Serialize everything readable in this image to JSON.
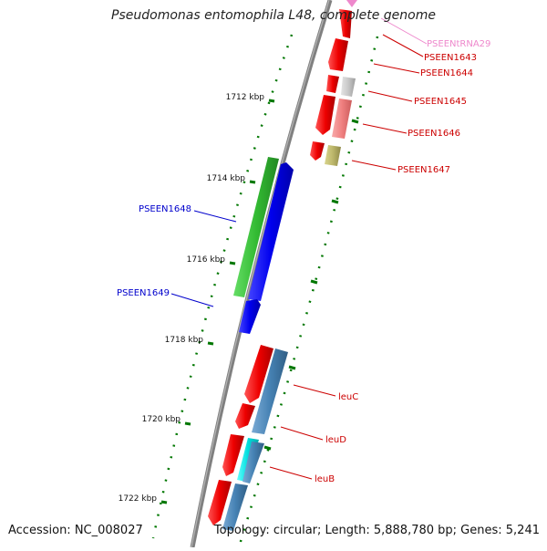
{
  "title": "Pseudomonas entomophila L48, complete genome",
  "footer": {
    "accession": "Accession: NC_008027",
    "topology": "Topology: circular; Length: 5,888,780 bp; Genes: 5,241"
  },
  "kbp_labels": [
    "1712 kbp",
    "1714 kbp",
    "1716 kbp",
    "1718 kbp",
    "1720 kbp",
    "1722 kbp"
  ],
  "gene_labels": [
    {
      "text": "PSEENtRNA29",
      "color": "#ee88cc"
    },
    {
      "text": "PSEEN1643",
      "color": "#cc0000"
    },
    {
      "text": "PSEEN1644",
      "color": "#cc0000"
    },
    {
      "text": "PSEEN1645",
      "color": "#cc0000"
    },
    {
      "text": "PSEEN1646",
      "color": "#cc0000"
    },
    {
      "text": "PSEEN1647",
      "color": "#cc0000"
    },
    {
      "text": "PSEEN1648",
      "color": "#0000cc"
    },
    {
      "text": "PSEEN1649",
      "color": "#0000cc"
    },
    {
      "text": "leuC",
      "color": "#cc0000"
    },
    {
      "text": "leuD",
      "color": "#cc0000"
    },
    {
      "text": "leuB",
      "color": "#cc0000"
    }
  ],
  "colors": {
    "red_gene": "#ee0000",
    "blue_gene": "#0000ee",
    "green_gene": "#33bb33",
    "steel_gene": "#4682b4",
    "cyan_gene": "#00dddd",
    "grey_gene": "#c8c8c8",
    "pink_gene": "#f08080",
    "khaki_gene": "#bdb76b",
    "backbone": "#808080",
    "ticks": "#007700"
  }
}
